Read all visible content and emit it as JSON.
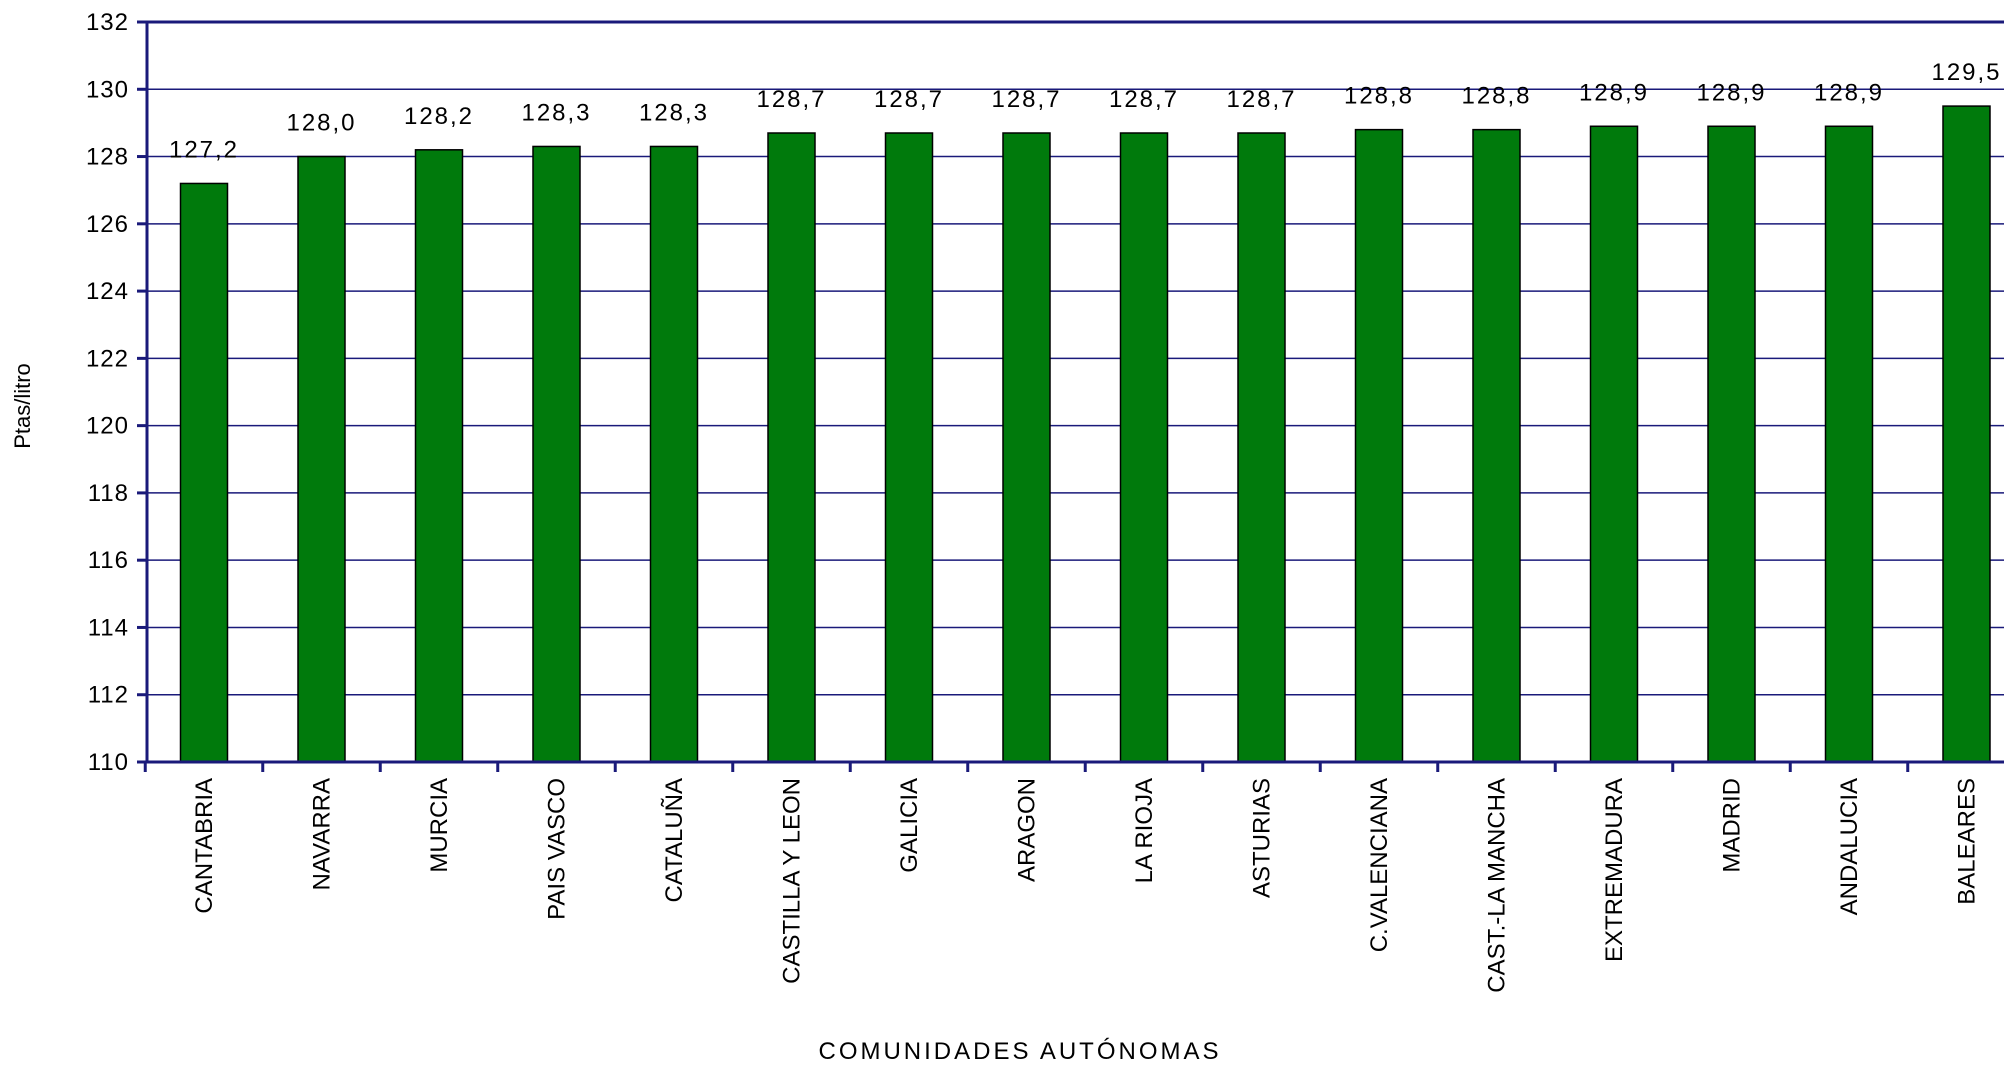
{
  "chart_data": {
    "type": "bar",
    "title": "",
    "xlabel": "COMUNIDADES AUTÓNOMAS",
    "ylabel": "Ptas/litro",
    "ylim": [
      110,
      132
    ],
    "ytick_step": 2,
    "yticks": [
      "110",
      "112",
      "114",
      "116",
      "118",
      "120",
      "122",
      "124",
      "126",
      "128",
      "130",
      "132"
    ],
    "grid": true,
    "categories": [
      "CANTABRIA",
      "NAVARRA",
      "MURCIA",
      "PAIS VASCO",
      "CATALUÑA",
      "CASTILLA Y LEON",
      "GALICIA",
      "ARAGON",
      "LA RIOJA",
      "ASTURIAS",
      "C.VALENCIANA",
      "CAST.-LA MANCHA",
      "EXTREMADURA",
      "MADRID",
      "ANDALUCIA",
      "BALEARES"
    ],
    "values": [
      127.2,
      128.0,
      128.2,
      128.3,
      128.3,
      128.7,
      128.7,
      128.7,
      128.7,
      128.7,
      128.8,
      128.8,
      128.9,
      128.9,
      128.9,
      129.5
    ],
    "data_labels": [
      "127,2",
      "128,0",
      "128,2",
      "128,3",
      "128,3",
      "128,7",
      "128,7",
      "128,7",
      "128,7",
      "128,7",
      "128,8",
      "128,8",
      "128,9",
      "128,9",
      "128,9",
      "129,5"
    ],
    "colors": {
      "bar": "#007a0c",
      "bar_stroke": "#000000",
      "axis": "#1a1a7a",
      "grid": "#1a1a7a"
    }
  }
}
